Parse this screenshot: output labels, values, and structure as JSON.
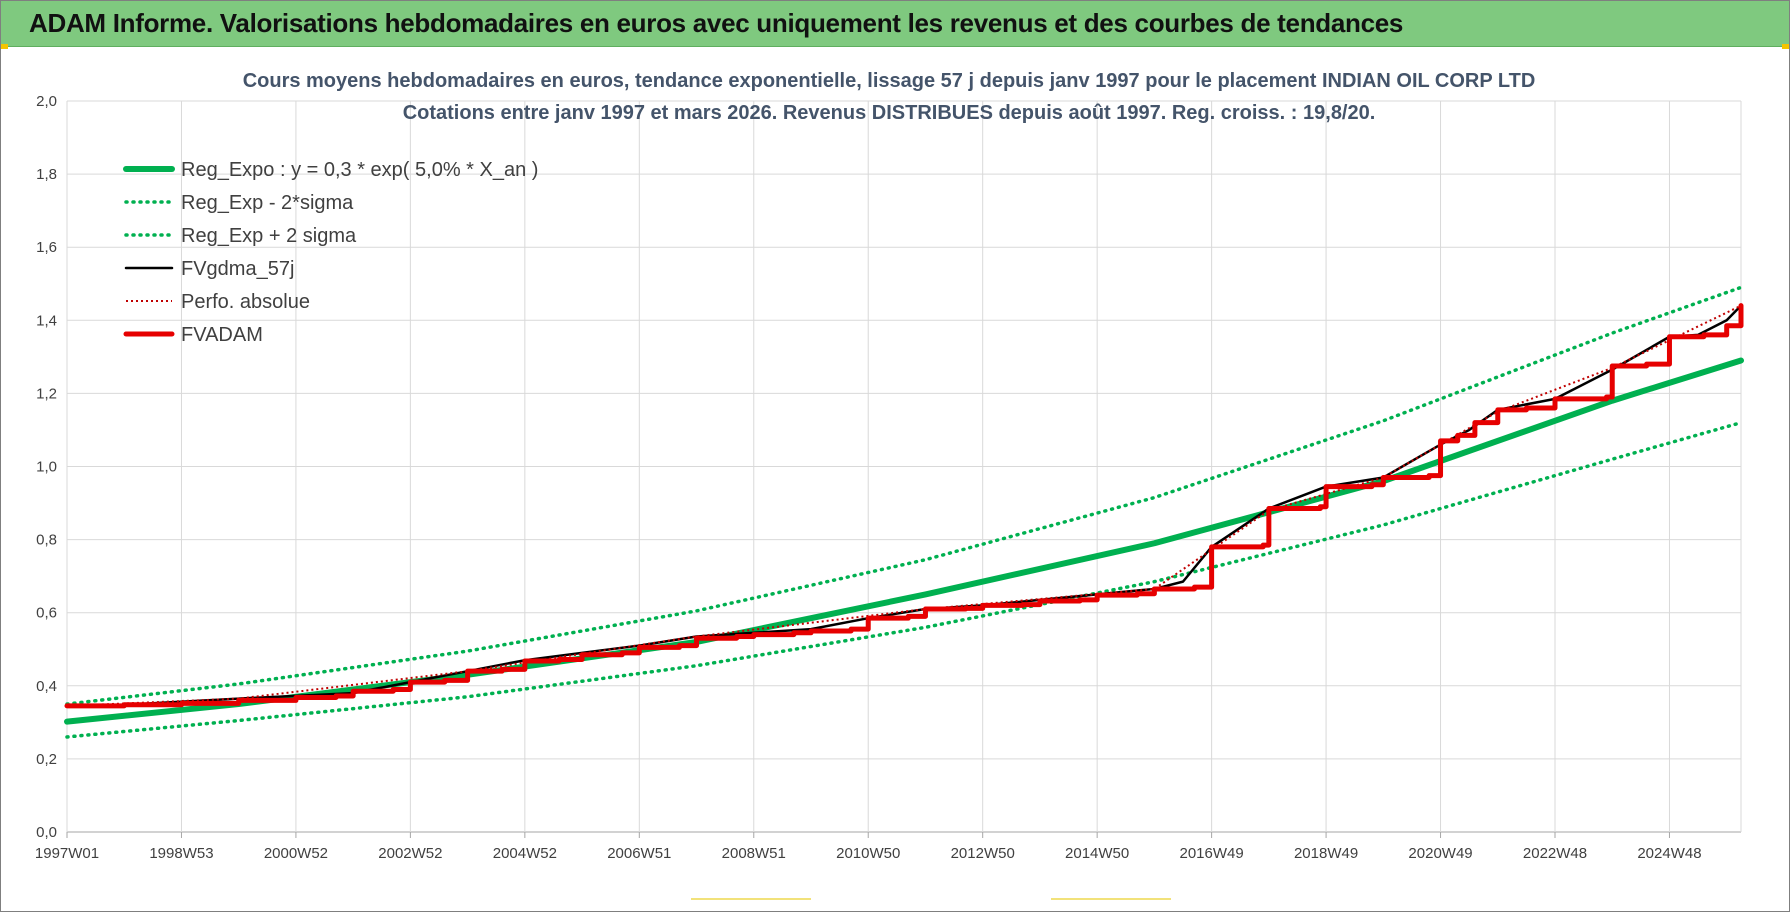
{
  "header": {
    "title": "ADAM Informe. Valorisations hebdomadaires en euros avec uniquement les revenus et des courbes de tendances"
  },
  "colors": {
    "header_bg": "#7fc97f",
    "regression": "#00b050",
    "fvgdma": "#000000",
    "perfo": "#c00000",
    "fvadam": "#e60000",
    "grid": "#d9d9d9"
  },
  "chart_data": {
    "type": "line",
    "title": "Cours moyens hebdomadaires en euros, tendance exponentielle, lissage 57 j depuis janv 1997  pour le  placement INDIAN OIL CORP LTD",
    "subtitle": "Cotations entre janv 1997 et mars 2026. Revenus DISTRIBUES depuis août 1997. Reg. croiss. : 19,8/20.",
    "ylim": [
      0,
      2
    ],
    "y_ticks": [
      "0,0",
      "0,2",
      "0,4",
      "0,6",
      "0,8",
      "1,0",
      "1,2",
      "1,4",
      "1,6",
      "1,8",
      "2,0"
    ],
    "x_range": [
      1997.0,
      2026.25
    ],
    "x_ticks": [
      {
        "label": "1997W01",
        "year": 1997.0
      },
      {
        "label": "1998W53",
        "year": 1999.0
      },
      {
        "label": "2000W52",
        "year": 2001.0
      },
      {
        "label": "2002W52",
        "year": 2003.0
      },
      {
        "label": "2004W52",
        "year": 2005.0
      },
      {
        "label": "2006W51",
        "year": 2007.0
      },
      {
        "label": "2008W51",
        "year": 2009.0
      },
      {
        "label": "2010W50",
        "year": 2011.0
      },
      {
        "label": "2012W50",
        "year": 2013.0
      },
      {
        "label": "2014W50",
        "year": 2015.0
      },
      {
        "label": "2016W49",
        "year": 2017.0
      },
      {
        "label": "2018W49",
        "year": 2019.0
      },
      {
        "label": "2020W49",
        "year": 2021.0
      },
      {
        "label": "2022W48",
        "year": 2023.0
      },
      {
        "label": "2024W48",
        "year": 2025.0
      }
    ],
    "legend_placement": "top-left",
    "grid": true,
    "series": [
      {
        "name": "Reg_Expo : y = 0,3 * exp( 5,0% *  X_an )",
        "style": "thick",
        "x": [
          1997.0,
          2000.0,
          2004.0,
          2008.0,
          2012.0,
          2016.0,
          2020.0,
          2024.0,
          2026.25
        ],
        "y": [
          0.302,
          0.35,
          0.43,
          0.52,
          0.65,
          0.79,
          0.96,
          1.18,
          1.29
        ]
      },
      {
        "name": "Reg_Exp - 2*sigma",
        "style": "dotted",
        "x": [
          1997.0,
          2000.0,
          2004.0,
          2008.0,
          2012.0,
          2016.0,
          2020.0,
          2024.0,
          2026.25
        ],
        "y": [
          0.26,
          0.305,
          0.37,
          0.455,
          0.56,
          0.685,
          0.84,
          1.02,
          1.12
        ]
      },
      {
        "name": "Reg_Exp + 2 sigma",
        "style": "dotted",
        "x": [
          1997.0,
          2000.0,
          2004.0,
          2008.0,
          2012.0,
          2016.0,
          2020.0,
          2024.0,
          2026.25
        ],
        "y": [
          0.35,
          0.405,
          0.495,
          0.605,
          0.745,
          0.915,
          1.125,
          1.365,
          1.49
        ]
      },
      {
        "name": "FVgdma_57j",
        "style": "thin",
        "x": [
          1997.0,
          1998.0,
          2000.0,
          2002.0,
          2003.0,
          2004.0,
          2005.0,
          2006.0,
          2007.0,
          2008.0,
          2009.0,
          2010.0,
          2011.0,
          2012.0,
          2013.0,
          2014.0,
          2015.0,
          2016.0,
          2016.5,
          2017.0,
          2018.0,
          2019.0,
          2020.0,
          2021.0,
          2021.5,
          2022.0,
          2023.0,
          2024.0,
          2025.0,
          2025.5,
          2026.0,
          2026.25
        ],
        "y": [
          0.345,
          0.348,
          0.365,
          0.38,
          0.41,
          0.44,
          0.47,
          0.49,
          0.51,
          0.535,
          0.545,
          0.555,
          0.585,
          0.61,
          0.62,
          0.635,
          0.65,
          0.665,
          0.685,
          0.78,
          0.885,
          0.945,
          0.97,
          1.06,
          1.1,
          1.155,
          1.185,
          1.265,
          1.355,
          1.36,
          1.4,
          1.44
        ]
      },
      {
        "name": "Perfo. absolue",
        "style": "dotted-thin",
        "x": [
          1997.0,
          2000.0,
          2004.0,
          2008.0,
          2012.0,
          2016.0,
          2018.0,
          2020.0,
          2022.0,
          2024.0,
          2026.25
        ],
        "y": [
          0.345,
          0.365,
          0.44,
          0.535,
          0.61,
          0.665,
          0.88,
          0.97,
          1.15,
          1.27,
          1.44
        ]
      },
      {
        "name": "FVADAM",
        "style": "thick-step",
        "x": [
          1997.0,
          1998.0,
          1999.0,
          2000.0,
          2001.0,
          2001.7,
          2002.0,
          2002.7,
          2003.0,
          2003.6,
          2004.0,
          2004.6,
          2005.0,
          2005.6,
          2006.0,
          2006.7,
          2007.0,
          2007.7,
          2008.0,
          2008.7,
          2009.0,
          2009.7,
          2010.0,
          2010.7,
          2011.0,
          2011.7,
          2012.0,
          2012.7,
          2013.0,
          2013.7,
          2014.0,
          2014.7,
          2015.0,
          2015.7,
          2016.0,
          2016.7,
          2017.0,
          2017.9,
          2018.0,
          2018.9,
          2019.0,
          2019.8,
          2020.0,
          2020.8,
          2021.0,
          2021.3,
          2021.6,
          2022.0,
          2022.5,
          2023.0,
          2023.9,
          2024.0,
          2024.6,
          2025.0,
          2025.6,
          2026.0,
          2026.25
        ],
        "y": [
          0.345,
          0.348,
          0.352,
          0.36,
          0.368,
          0.372,
          0.385,
          0.39,
          0.41,
          0.415,
          0.44,
          0.445,
          0.468,
          0.472,
          0.485,
          0.49,
          0.505,
          0.51,
          0.53,
          0.535,
          0.54,
          0.545,
          0.55,
          0.555,
          0.585,
          0.59,
          0.61,
          0.612,
          0.62,
          0.622,
          0.632,
          0.635,
          0.648,
          0.652,
          0.665,
          0.67,
          0.78,
          0.785,
          0.885,
          0.89,
          0.945,
          0.95,
          0.97,
          0.975,
          1.07,
          1.085,
          1.12,
          1.155,
          1.16,
          1.185,
          1.19,
          1.275,
          1.28,
          1.355,
          1.36,
          1.385,
          1.44
        ]
      }
    ]
  }
}
